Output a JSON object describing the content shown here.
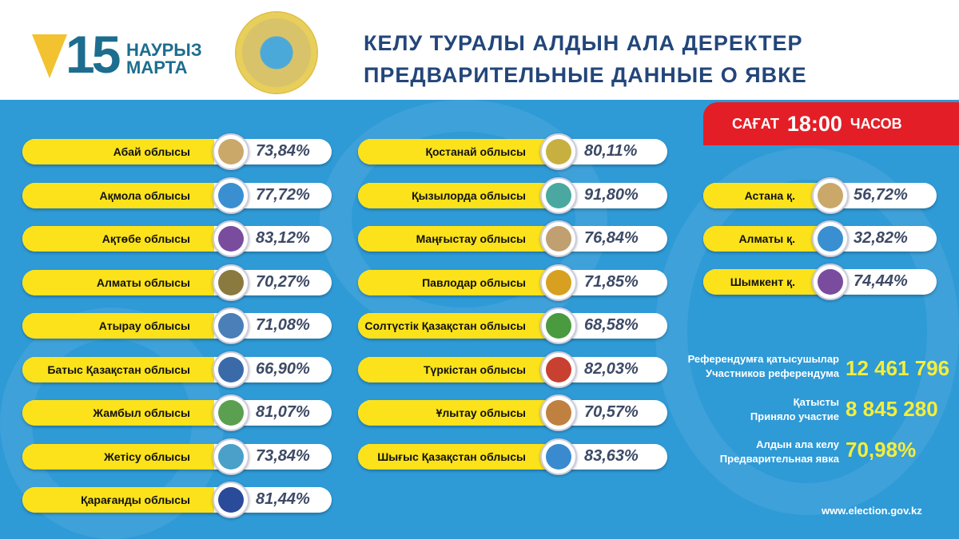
{
  "header": {
    "day": "15",
    "month_kz": "НАУРЫЗ",
    "month_ru": "МАРТА",
    "title_kz": "КЕЛУ ТУРАЛЫ АЛДЫН АЛА ДЕРЕКТЕР",
    "title_ru": "ПРЕДВАРИТЕЛЬНЫЕ ДАННЫЕ О ЯВКЕ"
  },
  "time": {
    "prefix": "САҒАТ",
    "value": "18:00",
    "suffix": "ЧАСОВ",
    "color": "#e41e26"
  },
  "regions_left": [
    {
      "name": "Абай облысы",
      "pct": "73,84%",
      "emblem": "abai-logo"
    },
    {
      "name": "Ақмола облысы",
      "pct": "77,72%",
      "emblem": "aqmola-logo"
    },
    {
      "name": "Ақтөбе облысы",
      "pct": "83,12%",
      "emblem": "aktobe-logo"
    },
    {
      "name": "Алматы облысы",
      "pct": "70,27%",
      "emblem": "almaty-region-emblem"
    },
    {
      "name": "Атырау  облысы",
      "pct": "71,08%",
      "emblem": "atyrau-logo"
    },
    {
      "name": "Батыс Қазақстан облысы",
      "pct": "66,90%",
      "emblem": "west-kz-emblem"
    },
    {
      "name": "Жамбыл облысы",
      "pct": "81,07%",
      "emblem": "zhambyl-emblem"
    },
    {
      "name": "Жетісу облысы",
      "pct": "73,84%",
      "emblem": "zhetisu-emblem"
    },
    {
      "name": "Қарағанды облысы",
      "pct": "81,44%",
      "emblem": "karaganda-emblem"
    }
  ],
  "regions_mid": [
    {
      "name": "Қостанай облысы",
      "pct": "80,11%",
      "emblem": "kostanay-emblem"
    },
    {
      "name": "Қызылорда облысы",
      "pct": "91,80%",
      "emblem": "kyzylorda-emblem"
    },
    {
      "name": "Маңғыстау облысы",
      "pct": "76,84%",
      "emblem": "mangystau-emblem"
    },
    {
      "name": "Павлодар облысы",
      "pct": "71,85%",
      "emblem": "pavlodar-emblem"
    },
    {
      "name": "Солтүстік Қазақстан облысы",
      "pct": "68,58%",
      "emblem": "north-kz-emblem"
    },
    {
      "name": "Түркістан облысы",
      "pct": "82,03%",
      "emblem": "turkistan-emblem"
    },
    {
      "name": "Ұлытау облысы",
      "pct": "70,57%",
      "emblem": "ulytau-logo"
    },
    {
      "name": "Шығыс Қазақстан облысы",
      "pct": "83,63%",
      "emblem": "east-kz-emblem"
    }
  ],
  "cities": [
    {
      "name": "Астана  қ.",
      "pct": "56,72%",
      "emblem": "astana-emblem"
    },
    {
      "name": "Алматы  қ.",
      "pct": "32,82%",
      "emblem": "almaty-city-emblem"
    },
    {
      "name": "Шымкент қ.",
      "pct": "74,44%",
      "emblem": "shymkent-logo"
    }
  ],
  "stats": [
    {
      "label_kz": "Референдумға қатысушылар",
      "label_ru": "Участников референдума",
      "value": "12 461 796"
    },
    {
      "label_kz": "Қатысты",
      "label_ru": "Приняло участие",
      "value": "8 845 280"
    },
    {
      "label_kz": "Алдын ала келу",
      "label_ru": "Предварительная явка",
      "value": "70,98%"
    }
  ],
  "website": "www.election.gov.kz"
}
